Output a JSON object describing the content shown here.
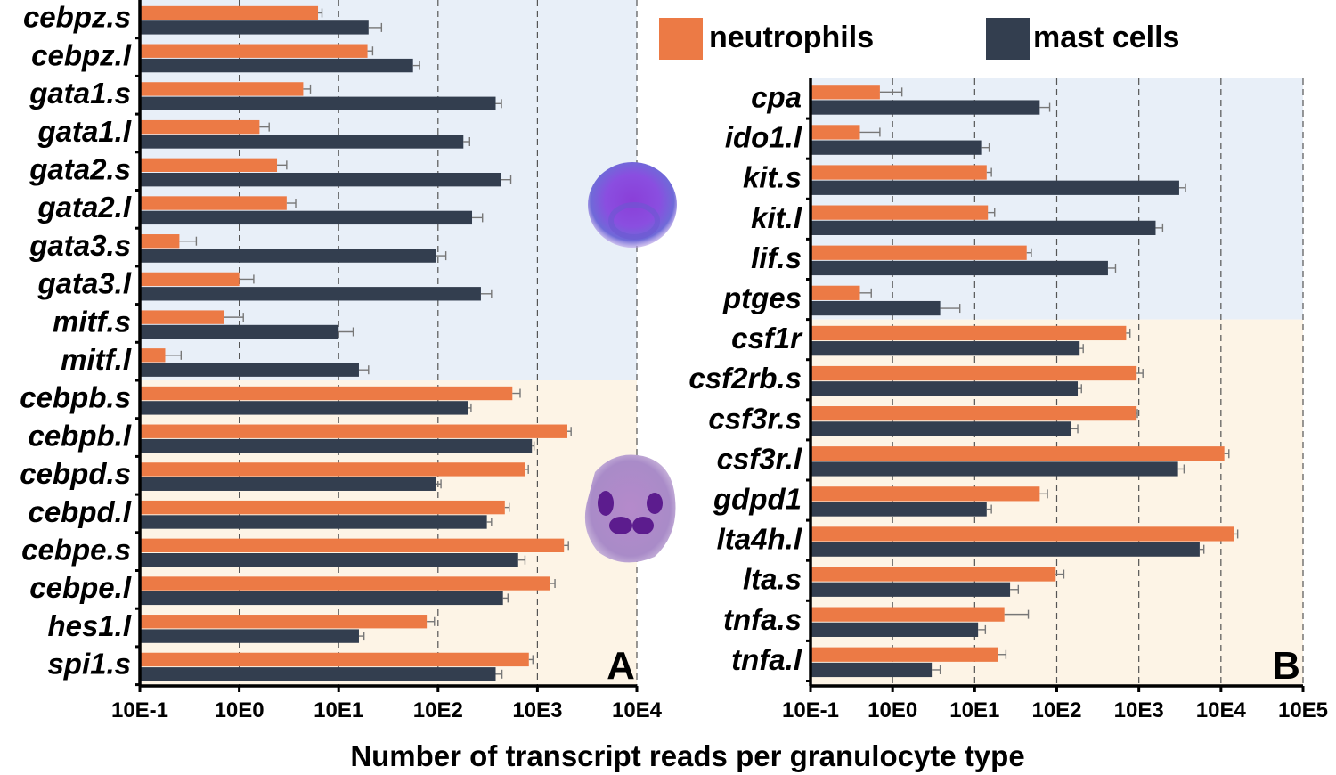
{
  "chart_data": [
    {
      "type": "bar",
      "orientation": "horizontal",
      "panel_label": "A",
      "xscale": "log",
      "xlim": [
        0.1,
        10000
      ],
      "x_ticks": [
        "10E-1",
        "10E0",
        "10E1",
        "10E2",
        "10E3",
        "10E4"
      ],
      "grid": "vertical dashed",
      "categories": [
        "cebpz.s",
        "cebpz.l",
        "gata1.s",
        "gata1.l",
        "gata2.s",
        "gata2.l",
        "gata3.s",
        "gata3.l",
        "mitf.s",
        "mitf.l",
        "cebpb.s",
        "cebpb.l",
        "cebpd.s",
        "cebpd.l",
        "cebpe.s",
        "cebpe.l",
        "hes1.l",
        "spi1.s"
      ],
      "shaded_groups": [
        {
          "from": "cebpz.s",
          "to": "mitf.l",
          "color": "#e8eff8"
        },
        {
          "from": "cebpb.s",
          "to": "spi1.s",
          "color": "#fdf4e6"
        }
      ],
      "series": [
        {
          "name": "neutrophils",
          "color": "#ec7a45",
          "values": [
            6.2,
            19.5,
            4.4,
            1.6,
            2.4,
            3.0,
            0.25,
            1.0,
            0.7,
            0.18,
            560,
            2000,
            750,
            470,
            1850,
            1350,
            77,
            820
          ],
          "errors": [
            0.6,
            2.5,
            0.8,
            0.4,
            0.6,
            0.7,
            0.12,
            0.4,
            0.4,
            0.08,
            110,
            180,
            60,
            50,
            200,
            150,
            15,
            80
          ]
        },
        {
          "name": "mast cells",
          "color": "#333e4f",
          "values": [
            20,
            56,
            380,
            180,
            430,
            220,
            95,
            270,
            10,
            16,
            200,
            880,
            95,
            310,
            640,
            450,
            16,
            380
          ],
          "errors": [
            7,
            9,
            55,
            28,
            110,
            60,
            25,
            75,
            4,
            4,
            15,
            45,
            12,
            35,
            110,
            55,
            2,
            60
          ]
        }
      ],
      "xlabel": "Number of transcript reads per granulocyte type"
    },
    {
      "type": "bar",
      "orientation": "horizontal",
      "panel_label": "B",
      "xscale": "log",
      "xlim": [
        0.1,
        100000
      ],
      "x_ticks": [
        "10E-1",
        "10E0",
        "10E1",
        "10E2",
        "10E3",
        "10E4",
        "10E5"
      ],
      "grid": "vertical dashed",
      "categories": [
        "cpa",
        "ido1.l",
        "kit.s",
        "kit.l",
        "lif.s",
        "ptges",
        "csf1r",
        "csf2rb.s",
        "csf3r.s",
        "csf3r.l",
        "gdpd1",
        "lta4h.l",
        "lta.s",
        "tnfa.s",
        "tnfa.l"
      ],
      "shaded_groups": [
        {
          "from": "cpa",
          "to": "ptges",
          "color": "#e8eff8"
        },
        {
          "from": "csf1r",
          "to": "tnfa.l",
          "color": "#fdf4e6"
        }
      ],
      "series": [
        {
          "name": "neutrophils",
          "color": "#ec7a45",
          "values": [
            0.7,
            0.4,
            14,
            14.5,
            43,
            0.4,
            700,
            940,
            940,
            11000,
            62,
            14500,
            97,
            23,
            19
          ],
          "errors": [
            0.6,
            0.3,
            2,
            3,
            6,
            0.15,
            80,
            180,
            20,
            1500,
            15,
            1500,
            25,
            22,
            5
          ]
        },
        {
          "name": "mast cells",
          "color": "#333e4f",
          "values": [
            62,
            12,
            3100,
            1600,
            420,
            3.8,
            190,
            180,
            150,
            3000,
            14,
            5500,
            27,
            11,
            3.0
          ],
          "errors": [
            20,
            3,
            600,
            350,
            100,
            2.8,
            20,
            20,
            30,
            550,
            2,
            700,
            7,
            2.5,
            0.8
          ]
        }
      ],
      "xlabel": "Number of transcript reads per granulocyte type"
    }
  ],
  "legend": {
    "position": "top-right",
    "items": [
      {
        "label": "neutrophils",
        "color": "#ec7a45"
      },
      {
        "label": "mast cells",
        "color": "#333e4f"
      }
    ]
  },
  "xlabel": "Number of transcript reads per granulocyte type",
  "images": [
    {
      "name": "mast-cell-micrograph",
      "alt": "mast cell"
    },
    {
      "name": "neutrophil-micrograph",
      "alt": "neutrophil"
    }
  ]
}
